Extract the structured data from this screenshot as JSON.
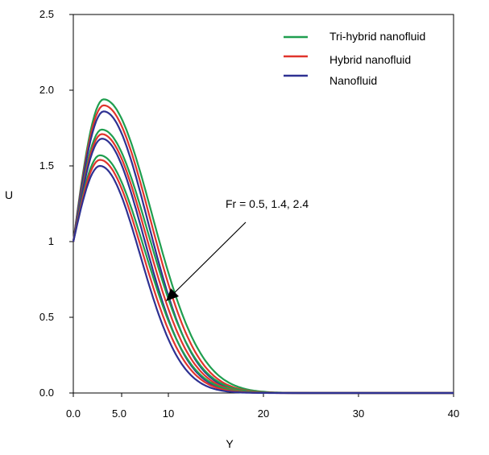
{
  "chart_data": {
    "type": "line",
    "title": "",
    "xlabel": "Y",
    "ylabel": "U",
    "xlim": [
      0,
      40
    ],
    "ylim": [
      0,
      2.5
    ],
    "x_ticks": [
      {
        "value": 0,
        "label": "0.0"
      },
      {
        "value": 10,
        "label": "10"
      },
      {
        "value": 20,
        "label": "20"
      },
      {
        "value": 30,
        "label": "30"
      },
      {
        "value": 40,
        "label": "40"
      }
    ],
    "x_tick_extra": {
      "value": 5,
      "label": "5.0"
    },
    "y_ticks": [
      {
        "value": 0,
        "label": "0.0"
      },
      {
        "value": 0.5,
        "label": "0.5"
      },
      {
        "value": 1,
        "label": "1"
      },
      {
        "value": 1.5,
        "label": "1.5"
      },
      {
        "value": 2,
        "label": "2.0"
      },
      {
        "value": 2.5,
        "label": "2.5"
      }
    ],
    "grid": false,
    "legend_position": "top-right",
    "legend": [
      {
        "name": "Tri-hybrid nanofluid",
        "color": "#1f9e4f"
      },
      {
        "name": "Hybrid nanofluid",
        "color": "#e0342c"
      },
      {
        "name": "Nanofluid",
        "color": "#2e3192"
      }
    ],
    "annotation": {
      "text": "Fr = 0.5, 1.4, 2.4"
    },
    "series": [
      {
        "name": "Tri-hybrid nanofluid",
        "Fr": 0.5,
        "color": "#1f9e4f",
        "peak_x": 3.2,
        "peak_y": 1.94,
        "decay": 7.2,
        "tail_offset": 0.02
      },
      {
        "name": "Hybrid nanofluid",
        "Fr": 0.5,
        "color": "#e0342c",
        "peak_x": 3.2,
        "peak_y": 1.9,
        "decay": 6.9,
        "tail_offset": 0.02
      },
      {
        "name": "Nanofluid",
        "Fr": 0.5,
        "color": "#2e3192",
        "peak_x": 3.2,
        "peak_y": 1.86,
        "decay": 6.6,
        "tail_offset": 0.02
      },
      {
        "name": "Tri-hybrid nanofluid",
        "Fr": 1.4,
        "color": "#1f9e4f",
        "peak_x": 3.0,
        "peak_y": 1.74,
        "decay": 6.9,
        "tail_offset": 0.02
      },
      {
        "name": "Hybrid nanofluid",
        "Fr": 1.4,
        "color": "#e0342c",
        "peak_x": 3.0,
        "peak_y": 1.71,
        "decay": 6.6,
        "tail_offset": 0.02
      },
      {
        "name": "Nanofluid",
        "Fr": 1.4,
        "color": "#2e3192",
        "peak_x": 3.0,
        "peak_y": 1.68,
        "decay": 6.3,
        "tail_offset": 0.02
      },
      {
        "name": "Tri-hybrid nanofluid",
        "Fr": 2.4,
        "color": "#1f9e4f",
        "peak_x": 2.8,
        "peak_y": 1.57,
        "decay": 6.6,
        "tail_offset": 0.02
      },
      {
        "name": "Hybrid nanofluid",
        "Fr": 2.4,
        "color": "#e0342c",
        "peak_x": 2.8,
        "peak_y": 1.54,
        "decay": 6.3,
        "tail_offset": 0.02
      },
      {
        "name": "Nanofluid",
        "Fr": 2.4,
        "color": "#2e3192",
        "peak_x": 2.8,
        "peak_y": 1.5,
        "decay": 6.0,
        "tail_offset": 0.02
      }
    ]
  }
}
